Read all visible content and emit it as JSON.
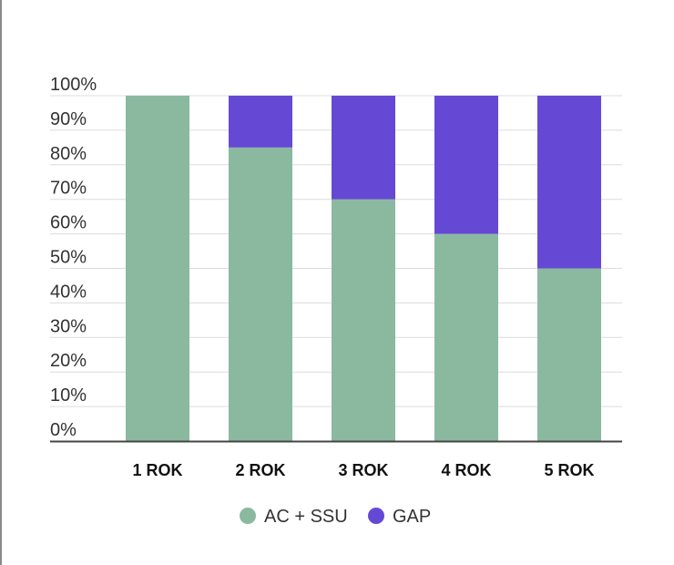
{
  "chart_data": {
    "type": "bar",
    "stacked": true,
    "categories": [
      "1 ROK",
      "2 ROK",
      "3 ROK",
      "4 ROK",
      "5 ROK"
    ],
    "series": [
      {
        "name": "AC + SSU",
        "color": "#8ab9a0",
        "values": [
          100,
          85,
          70,
          60,
          50
        ]
      },
      {
        "name": "GAP",
        "color": "#6549d5",
        "values": [
          0,
          15,
          30,
          40,
          50
        ]
      }
    ],
    "y_ticks": [
      "0%",
      "10%",
      "20%",
      "30%",
      "40%",
      "50%",
      "60%",
      "70%",
      "80%",
      "90%",
      "100%"
    ],
    "ylim": [
      0,
      100
    ],
    "grid": true,
    "legend_position": "bottom",
    "title": "",
    "xlabel": "",
    "ylabel": ""
  }
}
